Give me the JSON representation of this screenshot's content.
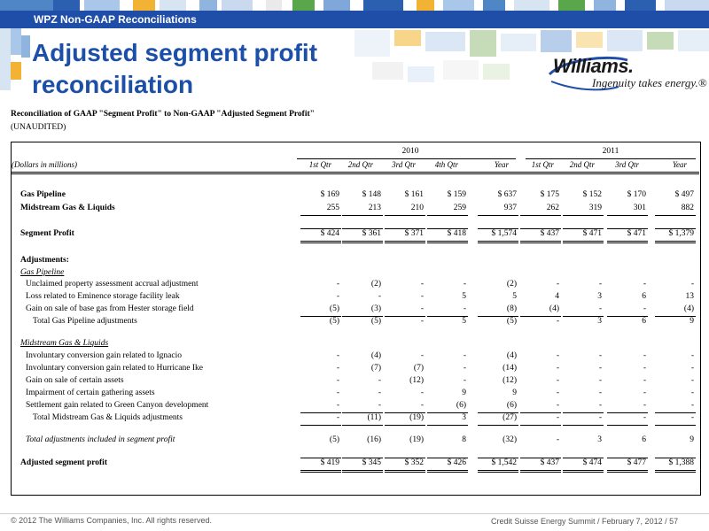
{
  "header": {
    "section_label": "WPZ Non-GAAP Reconciliations"
  },
  "title": {
    "line1": "Adjusted segment profit",
    "line2": "reconciliation"
  },
  "logo": {
    "wordmark": "Williams.",
    "tagline": "Ingenuity takes energy.®"
  },
  "report": {
    "title": "Reconciliation of GAAP \"Segment Profit\" to Non-GAAP \"Adjusted Segment Profit\"",
    "subtitle": "(UNAUDITED)",
    "units_label": "(Dollars in millions)",
    "years": [
      "2010",
      "2011"
    ],
    "columns_2010": [
      "1st Qtr",
      "2nd Qtr",
      "3rd Qtr",
      "4th Qtr",
      "Year"
    ],
    "columns_2011": [
      "1st Qtr",
      "2nd Qtr",
      "3rd Qtr",
      "Year"
    ]
  },
  "rows": [
    {
      "label": "Gas Pipeline",
      "style": "bold",
      "v2010": [
        "$ 169",
        "$ 148",
        "$ 161",
        "$ 159",
        "$ 637"
      ],
      "v2011": [
        "$ 175",
        "$ 152",
        "$ 170",
        "$ 497"
      ]
    },
    {
      "label": "Midstream Gas & Liquids",
      "style": "bold",
      "v2010": [
        "255",
        "213",
        "210",
        "259",
        "937"
      ],
      "v2011": [
        "262",
        "319",
        "301",
        "882"
      ],
      "underline": true
    },
    {
      "label": "Segment Profit",
      "style": "bold",
      "v2010": [
        "$ 424",
        "$ 361",
        "$ 371",
        "$ 418",
        "$ 1,574"
      ],
      "v2011": [
        "$ 437",
        "$ 471",
        "$ 471",
        "$ 1,379"
      ],
      "double_underline": true
    },
    {
      "label": "Adjustments:",
      "style": "bold",
      "v2010": [
        "",
        "",
        "",
        "",
        ""
      ],
      "v2011": [
        "",
        "",
        "",
        ""
      ]
    },
    {
      "label": "Gas Pipeline",
      "style": "italic-underline",
      "v2010": [
        "",
        "",
        "",
        "",
        ""
      ],
      "v2011": [
        "",
        "",
        "",
        ""
      ]
    },
    {
      "label": "Unclaimed property assessment accrual adjustment",
      "style": "indent",
      "v2010": [
        "-",
        "(2)",
        "-",
        "-",
        "(2)"
      ],
      "v2011": [
        "-",
        "-",
        "-",
        "-"
      ]
    },
    {
      "label": "Loss related to Eminence storage facility leak",
      "style": "indent",
      "v2010": [
        "-",
        "-",
        "-",
        "5",
        "5"
      ],
      "v2011": [
        "4",
        "3",
        "6",
        "13"
      ]
    },
    {
      "label": "Gain on sale of base gas from Hester storage field",
      "style": "indent",
      "v2010": [
        "(5)",
        "(3)",
        "-",
        "-",
        "(8)"
      ],
      "v2011": [
        "(4)",
        "-",
        "-",
        "(4)"
      ],
      "underline": true
    },
    {
      "label": "Total Gas Pipeline adjustments",
      "style": "indent2",
      "v2010": [
        "(5)",
        "(5)",
        "-",
        "5",
        "(5)"
      ],
      "v2011": [
        "-",
        "3",
        "6",
        "9"
      ]
    },
    {
      "label": "Midstream Gas & Liquids",
      "style": "italic-underline",
      "v2010": [
        "",
        "",
        "",
        "",
        ""
      ],
      "v2011": [
        "",
        "",
        "",
        ""
      ]
    },
    {
      "label": "Involuntary conversion gain related to Ignacio",
      "style": "indent",
      "v2010": [
        "-",
        "(4)",
        "-",
        "-",
        "(4)"
      ],
      "v2011": [
        "-",
        "-",
        "-",
        "-"
      ]
    },
    {
      "label": "Involuntary conversion gain related to Hurricane Ike",
      "style": "indent",
      "v2010": [
        "-",
        "(7)",
        "(7)",
        "-",
        "(14)"
      ],
      "v2011": [
        "-",
        "-",
        "-",
        "-"
      ]
    },
    {
      "label": "Gain on sale of certain assets",
      "style": "indent",
      "v2010": [
        "-",
        "-",
        "(12)",
        "-",
        "(12)"
      ],
      "v2011": [
        "-",
        "-",
        "-",
        "-"
      ]
    },
    {
      "label": "Impairment of certain gathering assets",
      "style": "indent",
      "v2010": [
        "-",
        "-",
        "-",
        "9",
        "9"
      ],
      "v2011": [
        "-",
        "-",
        "-",
        "-"
      ]
    },
    {
      "label": "Settlement gain related to Green Canyon development",
      "style": "indent",
      "v2010": [
        "-",
        "-",
        "-",
        "(6)",
        "(6)"
      ],
      "v2011": [
        "-",
        "-",
        "-",
        "-"
      ],
      "underline": true
    },
    {
      "label": "Total Midstream Gas & Liquids adjustments",
      "style": "indent2",
      "v2010": [
        "-",
        "(11)",
        "(19)",
        "3",
        "(27)"
      ],
      "v2011": [
        "-",
        "-",
        "-",
        "-"
      ],
      "underline": true
    },
    {
      "label": "Total adjustments included in segment profit",
      "style": "italic",
      "v2010": [
        "(5)",
        "(16)",
        "(19)",
        "8",
        "(32)"
      ],
      "v2011": [
        "-",
        "3",
        "6",
        "9"
      ]
    },
    {
      "label": "Adjusted segment profit",
      "style": "bold",
      "v2010": [
        "$ 419",
        "$ 345",
        "$ 352",
        "$ 426",
        "$ 1,542"
      ],
      "v2011": [
        "$ 437",
        "$ 474",
        "$ 477",
        "$ 1,388"
      ],
      "double_underline": true
    }
  ],
  "footer": {
    "copyright": "© 2012 The Williams Companies, Inc. All rights reserved.",
    "event": "Credit Suisse Energy Summit / February 7, 2012 /  57"
  },
  "colors": {
    "brand_blue": "#1f4ea8",
    "title_blue": "#1c4fa7"
  }
}
